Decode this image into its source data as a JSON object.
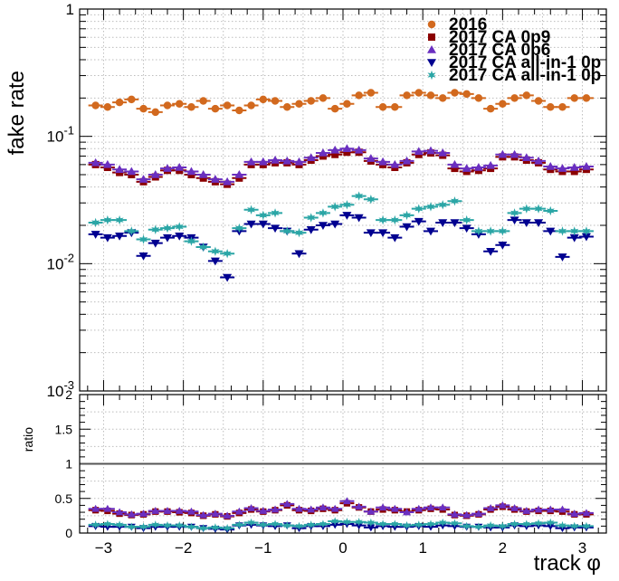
{
  "chart_data": [
    {
      "type": "scatter",
      "panel": "main",
      "ylabel": "fake rate",
      "yscale": "log",
      "ylim": [
        0.001,
        1
      ],
      "xlim": [
        -3.3,
        3.3
      ],
      "grid": true,
      "legend_placement": "top-right",
      "y_tick_labels": [
        "1",
        "10^{-1}",
        "10^{-2}",
        "10^{-3}"
      ],
      "x": [
        -3.1,
        -2.95,
        -2.8,
        -2.65,
        -2.5,
        -2.35,
        -2.2,
        -2.05,
        -1.9,
        -1.75,
        -1.6,
        -1.45,
        -1.3,
        -1.15,
        -1.0,
        -0.85,
        -0.7,
        -0.55,
        -0.4,
        -0.25,
        -0.1,
        0.05,
        0.2,
        0.35,
        0.5,
        0.65,
        0.8,
        0.95,
        1.1,
        1.25,
        1.4,
        1.55,
        1.7,
        1.85,
        2.0,
        2.15,
        2.3,
        2.45,
        2.6,
        2.75,
        2.9,
        3.05
      ],
      "series": [
        {
          "name": "2016",
          "marker": "circle",
          "color": "#d2691e",
          "values": [
            0.175,
            0.17,
            0.185,
            0.195,
            0.165,
            0.155,
            0.175,
            0.18,
            0.17,
            0.19,
            0.165,
            0.175,
            0.16,
            0.175,
            0.195,
            0.19,
            0.17,
            0.18,
            0.19,
            0.2,
            0.165,
            0.18,
            0.21,
            0.22,
            0.17,
            0.17,
            0.21,
            0.22,
            0.21,
            0.2,
            0.22,
            0.215,
            0.2,
            0.165,
            0.18,
            0.2,
            0.21,
            0.19,
            0.17,
            0.17,
            0.2,
            0.2
          ]
        },
        {
          "name": "2017 CA 0p9",
          "marker": "square",
          "color": "#8b0000",
          "values": [
            0.06,
            0.057,
            0.052,
            0.05,
            0.044,
            0.048,
            0.054,
            0.054,
            0.05,
            0.047,
            0.044,
            0.042,
            0.047,
            0.06,
            0.06,
            0.062,
            0.062,
            0.06,
            0.065,
            0.07,
            0.072,
            0.075,
            0.075,
            0.064,
            0.06,
            0.057,
            0.062,
            0.072,
            0.074,
            0.071,
            0.056,
            0.053,
            0.054,
            0.056,
            0.069,
            0.069,
            0.065,
            0.062,
            0.055,
            0.053,
            0.053,
            0.055
          ]
        },
        {
          "name": "2017 CA 0p6",
          "marker": "triangle-up",
          "color": "#6a2fc0",
          "values": [
            0.062,
            0.06,
            0.055,
            0.053,
            0.046,
            0.05,
            0.056,
            0.057,
            0.053,
            0.05,
            0.046,
            0.044,
            0.05,
            0.063,
            0.063,
            0.065,
            0.064,
            0.063,
            0.068,
            0.074,
            0.078,
            0.08,
            0.078,
            0.067,
            0.063,
            0.06,
            0.064,
            0.076,
            0.077,
            0.074,
            0.06,
            0.056,
            0.057,
            0.059,
            0.072,
            0.072,
            0.068,
            0.064,
            0.058,
            0.056,
            0.057,
            0.058
          ]
        },
        {
          "name": "2017 CA all-in-1 0p",
          "marker": "triangle-down",
          "color": "#000090",
          "values": [
            0.017,
            0.016,
            0.0165,
            0.0175,
            0.0115,
            0.0145,
            0.016,
            0.0165,
            0.016,
            0.0135,
            0.0105,
            0.0078,
            0.018,
            0.0205,
            0.0205,
            0.019,
            0.018,
            0.012,
            0.0185,
            0.02,
            0.0205,
            0.024,
            0.023,
            0.0175,
            0.0175,
            0.016,
            0.0195,
            0.0215,
            0.018,
            0.021,
            0.021,
            0.019,
            0.017,
            0.0125,
            0.014,
            0.022,
            0.021,
            0.021,
            0.018,
            0.0113,
            0.016,
            0.0163
          ]
        },
        {
          "name": "2017 CA all-in-1 0p",
          "marker": "star",
          "color": "#2ba6a6",
          "values": [
            0.021,
            0.022,
            0.022,
            0.018,
            0.0155,
            0.0185,
            0.019,
            0.0195,
            0.015,
            0.0135,
            0.0125,
            0.012,
            0.019,
            0.0265,
            0.024,
            0.025,
            0.018,
            0.0175,
            0.023,
            0.025,
            0.028,
            0.029,
            0.034,
            0.032,
            0.022,
            0.022,
            0.024,
            0.027,
            0.028,
            0.029,
            0.031,
            0.022,
            0.018,
            0.018,
            0.018,
            0.025,
            0.027,
            0.027,
            0.026,
            0.018,
            0.018,
            0.018
          ]
        }
      ]
    },
    {
      "type": "scatter",
      "panel": "ratio",
      "xlabel": "track φ",
      "ylabel": "ratio",
      "ylim": [
        0,
        2
      ],
      "xlim": [
        -3.3,
        3.3
      ],
      "grid": true,
      "x_tick_labels": [
        "−3",
        "−2",
        "−1",
        "0",
        "1",
        "2",
        "3"
      ],
      "y_tick_labels": [
        "0",
        "0.5",
        "1",
        "1.5",
        "2"
      ],
      "reference_line": 1,
      "x": [
        -3.1,
        -2.95,
        -2.8,
        -2.65,
        -2.5,
        -2.35,
        -2.2,
        -2.05,
        -1.9,
        -1.75,
        -1.6,
        -1.45,
        -1.3,
        -1.15,
        -1.0,
        -0.85,
        -0.7,
        -0.55,
        -0.4,
        -0.25,
        -0.1,
        0.05,
        0.2,
        0.35,
        0.5,
        0.65,
        0.8,
        0.95,
        1.1,
        1.25,
        1.4,
        1.55,
        1.7,
        1.85,
        2.0,
        2.15,
        2.3,
        2.45,
        2.6,
        2.75,
        2.9,
        3.05
      ],
      "series": [
        {
          "marker": "square",
          "color": "#8b0000",
          "values": [
            0.33,
            0.32,
            0.28,
            0.26,
            0.27,
            0.31,
            0.31,
            0.3,
            0.29,
            0.25,
            0.27,
            0.24,
            0.29,
            0.34,
            0.31,
            0.33,
            0.4,
            0.33,
            0.32,
            0.35,
            0.33,
            0.43,
            0.37,
            0.31,
            0.34,
            0.33,
            0.31,
            0.33,
            0.35,
            0.34,
            0.26,
            0.25,
            0.27,
            0.34,
            0.38,
            0.34,
            0.31,
            0.32,
            0.32,
            0.31,
            0.27,
            0.27
          ]
        },
        {
          "marker": "triangle-up",
          "color": "#6a2fc0",
          "values": [
            0.35,
            0.35,
            0.3,
            0.27,
            0.28,
            0.32,
            0.32,
            0.32,
            0.31,
            0.26,
            0.28,
            0.25,
            0.31,
            0.36,
            0.32,
            0.34,
            0.42,
            0.35,
            0.34,
            0.37,
            0.35,
            0.46,
            0.38,
            0.31,
            0.37,
            0.35,
            0.3,
            0.35,
            0.37,
            0.37,
            0.27,
            0.26,
            0.28,
            0.36,
            0.4,
            0.36,
            0.32,
            0.34,
            0.34,
            0.34,
            0.28,
            0.29
          ]
        },
        {
          "marker": "triangle-down",
          "color": "#000090",
          "values": [
            0.1,
            0.09,
            0.09,
            0.09,
            0.07,
            0.09,
            0.09,
            0.09,
            0.09,
            0.07,
            0.06,
            0.05,
            0.11,
            0.12,
            0.11,
            0.1,
            0.11,
            0.07,
            0.1,
            0.1,
            0.12,
            0.13,
            0.11,
            0.08,
            0.1,
            0.09,
            0.09,
            0.1,
            0.09,
            0.11,
            0.1,
            0.09,
            0.09,
            0.08,
            0.08,
            0.11,
            0.1,
            0.11,
            0.1,
            0.07,
            0.08,
            0.08
          ]
        },
        {
          "marker": "star",
          "color": "#2ba6a6",
          "values": [
            0.12,
            0.13,
            0.12,
            0.09,
            0.09,
            0.12,
            0.11,
            0.11,
            0.09,
            0.07,
            0.08,
            0.07,
            0.12,
            0.15,
            0.12,
            0.13,
            0.11,
            0.1,
            0.12,
            0.13,
            0.17,
            0.16,
            0.16,
            0.15,
            0.13,
            0.13,
            0.11,
            0.12,
            0.13,
            0.15,
            0.14,
            0.1,
            0.09,
            0.11,
            0.1,
            0.13,
            0.13,
            0.14,
            0.15,
            0.11,
            0.1,
            0.1
          ]
        }
      ]
    }
  ]
}
